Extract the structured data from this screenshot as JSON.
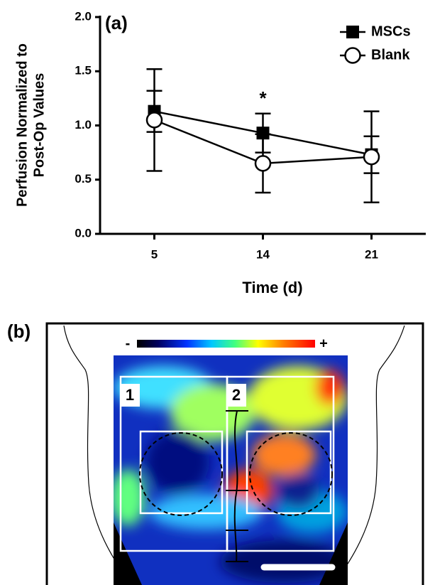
{
  "chart_data": [
    {
      "type": "line",
      "panel_label": "(a)",
      "y_label": [
        "Perfusion Normalized to",
        "Post-Op Values"
      ],
      "x_label": "Time (d)",
      "categories": [
        "5",
        "14",
        "21"
      ],
      "series": [
        {
          "name": "MSCs",
          "color": "#000000",
          "marker": "square",
          "values": [
            1.13,
            0.93,
            0.73
          ],
          "errors": [
            0.19,
            0.18,
            0.17
          ]
        },
        {
          "name": "Blank",
          "color": "#000000",
          "marker": "circle",
          "values": [
            1.05,
            0.65,
            0.71
          ],
          "errors": [
            0.47,
            0.27,
            0.42
          ]
        }
      ],
      "ylim": [
        0,
        2.0
      ],
      "yticks": [
        {
          "value": 0,
          "label": "0.0"
        },
        0.5,
        {
          "value": 1,
          "label": "1.0"
        },
        1.5,
        {
          "value": 2,
          "label": "2.0"
        }
      ],
      "annotations": [
        {
          "text": "*",
          "category": 1
        }
      ],
      "legend": "top-right"
    },
    {
      "type": "image",
      "panel_label": "(b)",
      "colorbar_labels": [
        "-",
        "+"
      ],
      "region_labels": [
        "1",
        "2"
      ]
    }
  ]
}
